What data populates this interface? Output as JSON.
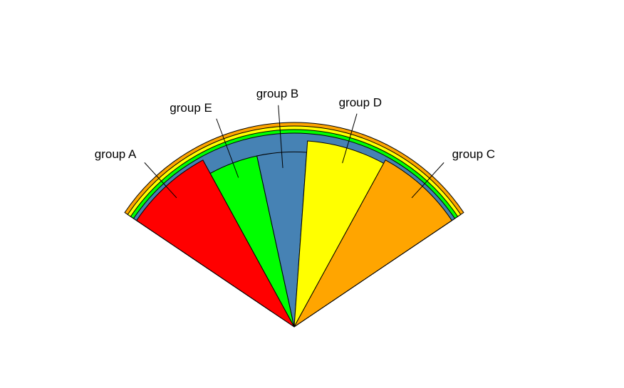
{
  "chart_data": {
    "type": "pie",
    "title": "",
    "slices": [
      {
        "label": "group A",
        "value": 20,
        "color": "#FF0000"
      },
      {
        "label": "group E",
        "value": 12,
        "color": "#00FF00"
      },
      {
        "label": "group B",
        "value": 12,
        "color": "#4682B4"
      },
      {
        "label": "group D",
        "value": 18,
        "color": "#FFFF00"
      },
      {
        "label": "group C",
        "value": 20,
        "color": "#FFA500"
      }
    ],
    "outer_rings": [
      {
        "color": "#4682B4"
      },
      {
        "color": "#00FF00"
      },
      {
        "color": "#FFFF00"
      },
      {
        "color": "#FFA500"
      }
    ]
  }
}
